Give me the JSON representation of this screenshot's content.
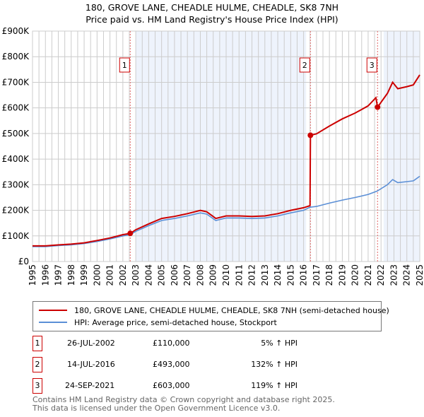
{
  "title_line1": "180, GROVE LANE, CHEADLE HULME, CHEADLE, SK8 7NH",
  "title_line2": "Price paid vs. HM Land Registry's House Price Index (HPI)",
  "chart_data": {
    "type": "line",
    "title": "180, GROVE LANE, CHEADLE HULME, CHEADLE, SK8 7NH — Price paid vs. HM Land Registry's House Price Index (HPI)",
    "xlabel": "",
    "ylabel": "",
    "xlim": [
      1995,
      2025
    ],
    "ylim": [
      0,
      900000
    ],
    "grid": true,
    "x_ticks": [
      "1995",
      "1996",
      "1997",
      "1998",
      "1999",
      "2000",
      "2001",
      "2002",
      "2003",
      "2004",
      "2005",
      "2006",
      "2007",
      "2008",
      "2009",
      "2010",
      "2011",
      "2012",
      "2013",
      "2014",
      "2015",
      "2016",
      "2017",
      "2018",
      "2019",
      "2020",
      "2021",
      "2022",
      "2023",
      "2024",
      "2025"
    ],
    "y_ticks": [
      {
        "value": 0,
        "label": "£0"
      },
      {
        "value": 100000,
        "label": "£100K"
      },
      {
        "value": 200000,
        "label": "£200K"
      },
      {
        "value": 300000,
        "label": "£300K"
      },
      {
        "value": 400000,
        "label": "£400K"
      },
      {
        "value": 500000,
        "label": "£500K"
      },
      {
        "value": 600000,
        "label": "£600K"
      },
      {
        "value": 700000,
        "label": "£700K"
      },
      {
        "value": 800000,
        "label": "£800K"
      },
      {
        "value": 900000,
        "label": "£900K"
      }
    ],
    "shaded_ranges": [
      [
        2003.0,
        2016.2
      ],
      [
        2022.2,
        2025
      ]
    ],
    "series": [
      {
        "name": "180, GROVE LANE, CHEADLE HULME, CHEADLE, SK8 7NH (semi-detached house)",
        "color": "#cc0000",
        "x": [
          1995,
          1996,
          1997,
          1998,
          1999,
          2000,
          2001,
          2002,
          2002.57,
          2003,
          2004,
          2005,
          2006,
          2007,
          2008,
          2008.5,
          2009.2,
          2010,
          2011,
          2012,
          2013,
          2014,
          2015,
          2016,
          2016.5,
          2016.53,
          2017,
          2018,
          2019,
          2020,
          2021,
          2021.6,
          2021.73,
          2022.5,
          2022.9,
          2023.3,
          2024,
          2024.5,
          2025
        ],
        "y": [
          61000,
          61000,
          65000,
          68000,
          73000,
          82000,
          92000,
          105000,
          110000,
          124000,
          147000,
          168000,
          176000,
          187000,
          200000,
          194000,
          168000,
          178000,
          178000,
          176000,
          178000,
          187000,
          200000,
          210000,
          218000,
          493000,
          499000,
          529000,
          557000,
          580000,
          608000,
          640000,
          603000,
          657000,
          700000,
          675000,
          683000,
          690000,
          729000
        ]
      },
      {
        "name": "HPI: Average price, semi-detached house, Stockport",
        "color": "#5b8fd6",
        "x": [
          1995,
          1996,
          1997,
          1998,
          1999,
          2000,
          2001,
          2002,
          2002.57,
          2003,
          2004,
          2005,
          2006,
          2007,
          2008,
          2008.5,
          2009.2,
          2010,
          2011,
          2012,
          2013,
          2014,
          2015,
          2016,
          2016.5,
          2017,
          2018,
          2019,
          2020,
          2021,
          2021.7,
          2022.5,
          2022.9,
          2023.3,
          2024,
          2024.5,
          2025
        ],
        "y": [
          58000,
          58000,
          62000,
          65000,
          70000,
          78000,
          88000,
          100000,
          105000,
          118000,
          140000,
          160000,
          168000,
          178000,
          190000,
          185000,
          160000,
          170000,
          170000,
          168000,
          170000,
          178000,
          190000,
          200000,
          212000,
          215000,
          228000,
          240000,
          250000,
          262000,
          275000,
          300000,
          320000,
          308000,
          312000,
          315000,
          333000
        ]
      }
    ],
    "sales": [
      {
        "label": "1",
        "x": 2002.57,
        "y": 110000
      },
      {
        "label": "2",
        "x": 2016.53,
        "y": 493000
      },
      {
        "label": "3",
        "x": 2021.73,
        "y": 603000
      }
    ],
    "legend_position": "below"
  },
  "legend": [
    {
      "label": "180, GROVE LANE, CHEADLE HULME, CHEADLE, SK8 7NH (semi-detached house)",
      "color": "#cc0000"
    },
    {
      "label": "HPI: Average price, semi-detached house, Stockport",
      "color": "#5b8fd6"
    }
  ],
  "transactions": [
    {
      "num": "1",
      "date": "26-JUL-2002",
      "price": "£110,000",
      "hpi": "5% ↑ HPI"
    },
    {
      "num": "2",
      "date": "14-JUL-2016",
      "price": "£493,000",
      "hpi": "132% ↑ HPI"
    },
    {
      "num": "3",
      "date": "24-SEP-2021",
      "price": "£603,000",
      "hpi": "119% ↑ HPI"
    }
  ],
  "footer_line1": "Contains HM Land Registry data © Crown copyright and database right 2025.",
  "footer_line2": "This data is licensed under the Open Government Licence v3.0."
}
